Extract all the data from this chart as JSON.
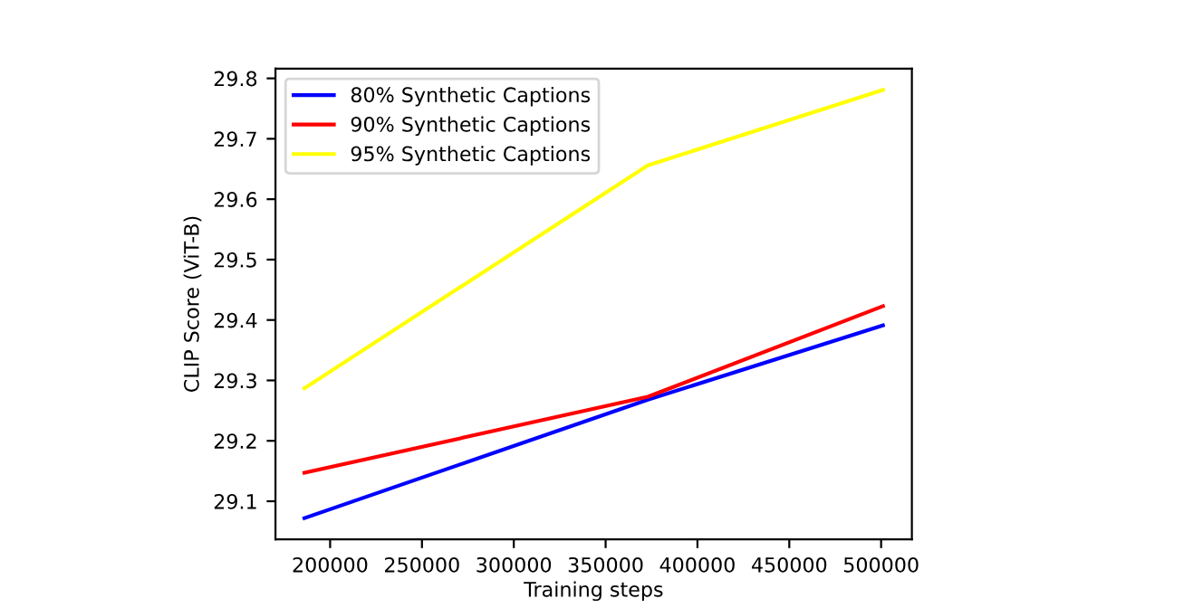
{
  "chart_data": {
    "type": "line",
    "xlabel": "Training steps",
    "ylabel": "CLIP Score (ViT-B)",
    "x": [
      186000,
      373000,
      501000
    ],
    "series": [
      {
        "name": "80% Synthetic Captions",
        "color": "#0000ff",
        "values": [
          29.072,
          29.268,
          29.391
        ]
      },
      {
        "name": "90% Synthetic Captions",
        "color": "#ff0000",
        "values": [
          29.147,
          29.273,
          29.423
        ]
      },
      {
        "name": "95% Synthetic Captions",
        "color": "#ffff00",
        "values": [
          29.287,
          29.656,
          29.781
        ]
      }
    ],
    "xlim": [
      170250,
      516750
    ],
    "ylim": [
      29.037,
      29.816
    ],
    "xticks": [
      200000,
      250000,
      300000,
      350000,
      400000,
      450000,
      500000
    ],
    "yticks": [
      29.1,
      29.2,
      29.3,
      29.4,
      29.5,
      29.6,
      29.7,
      29.8
    ],
    "grid": false,
    "legend": "top left"
  }
}
